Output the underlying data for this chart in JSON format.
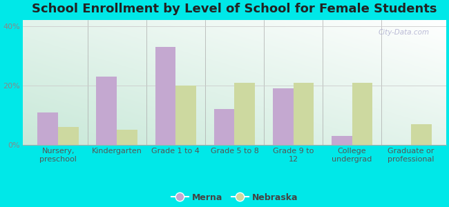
{
  "title": "School Enrollment by Level of School for Female Students",
  "categories": [
    "Nursery,\npreschool",
    "Kindergarten",
    "Grade 1 to 4",
    "Grade 5 to 8",
    "Grade 9 to\n12",
    "College\nundergrad",
    "Graduate or\nprofessional"
  ],
  "merna_values": [
    11,
    23,
    33,
    12,
    19,
    3,
    0
  ],
  "nebraska_values": [
    6,
    5,
    20,
    21,
    21,
    21,
    7
  ],
  "merna_color": "#c4a8d0",
  "nebraska_color": "#cdd9a0",
  "ylim": [
    0,
    42
  ],
  "yticks": [
    0,
    20,
    40
  ],
  "ytick_labels": [
    "0%",
    "20%",
    "40%"
  ],
  "background_color": "#00e8e8",
  "plot_bg_color_left": "#c8e8d8",
  "plot_bg_color_right": "#f0f8f0",
  "bar_width": 0.35,
  "legend_labels": [
    "Merna",
    "Nebraska"
  ],
  "watermark": "City-Data.com",
  "title_fontsize": 13,
  "tick_fontsize": 8,
  "legend_fontsize": 9
}
